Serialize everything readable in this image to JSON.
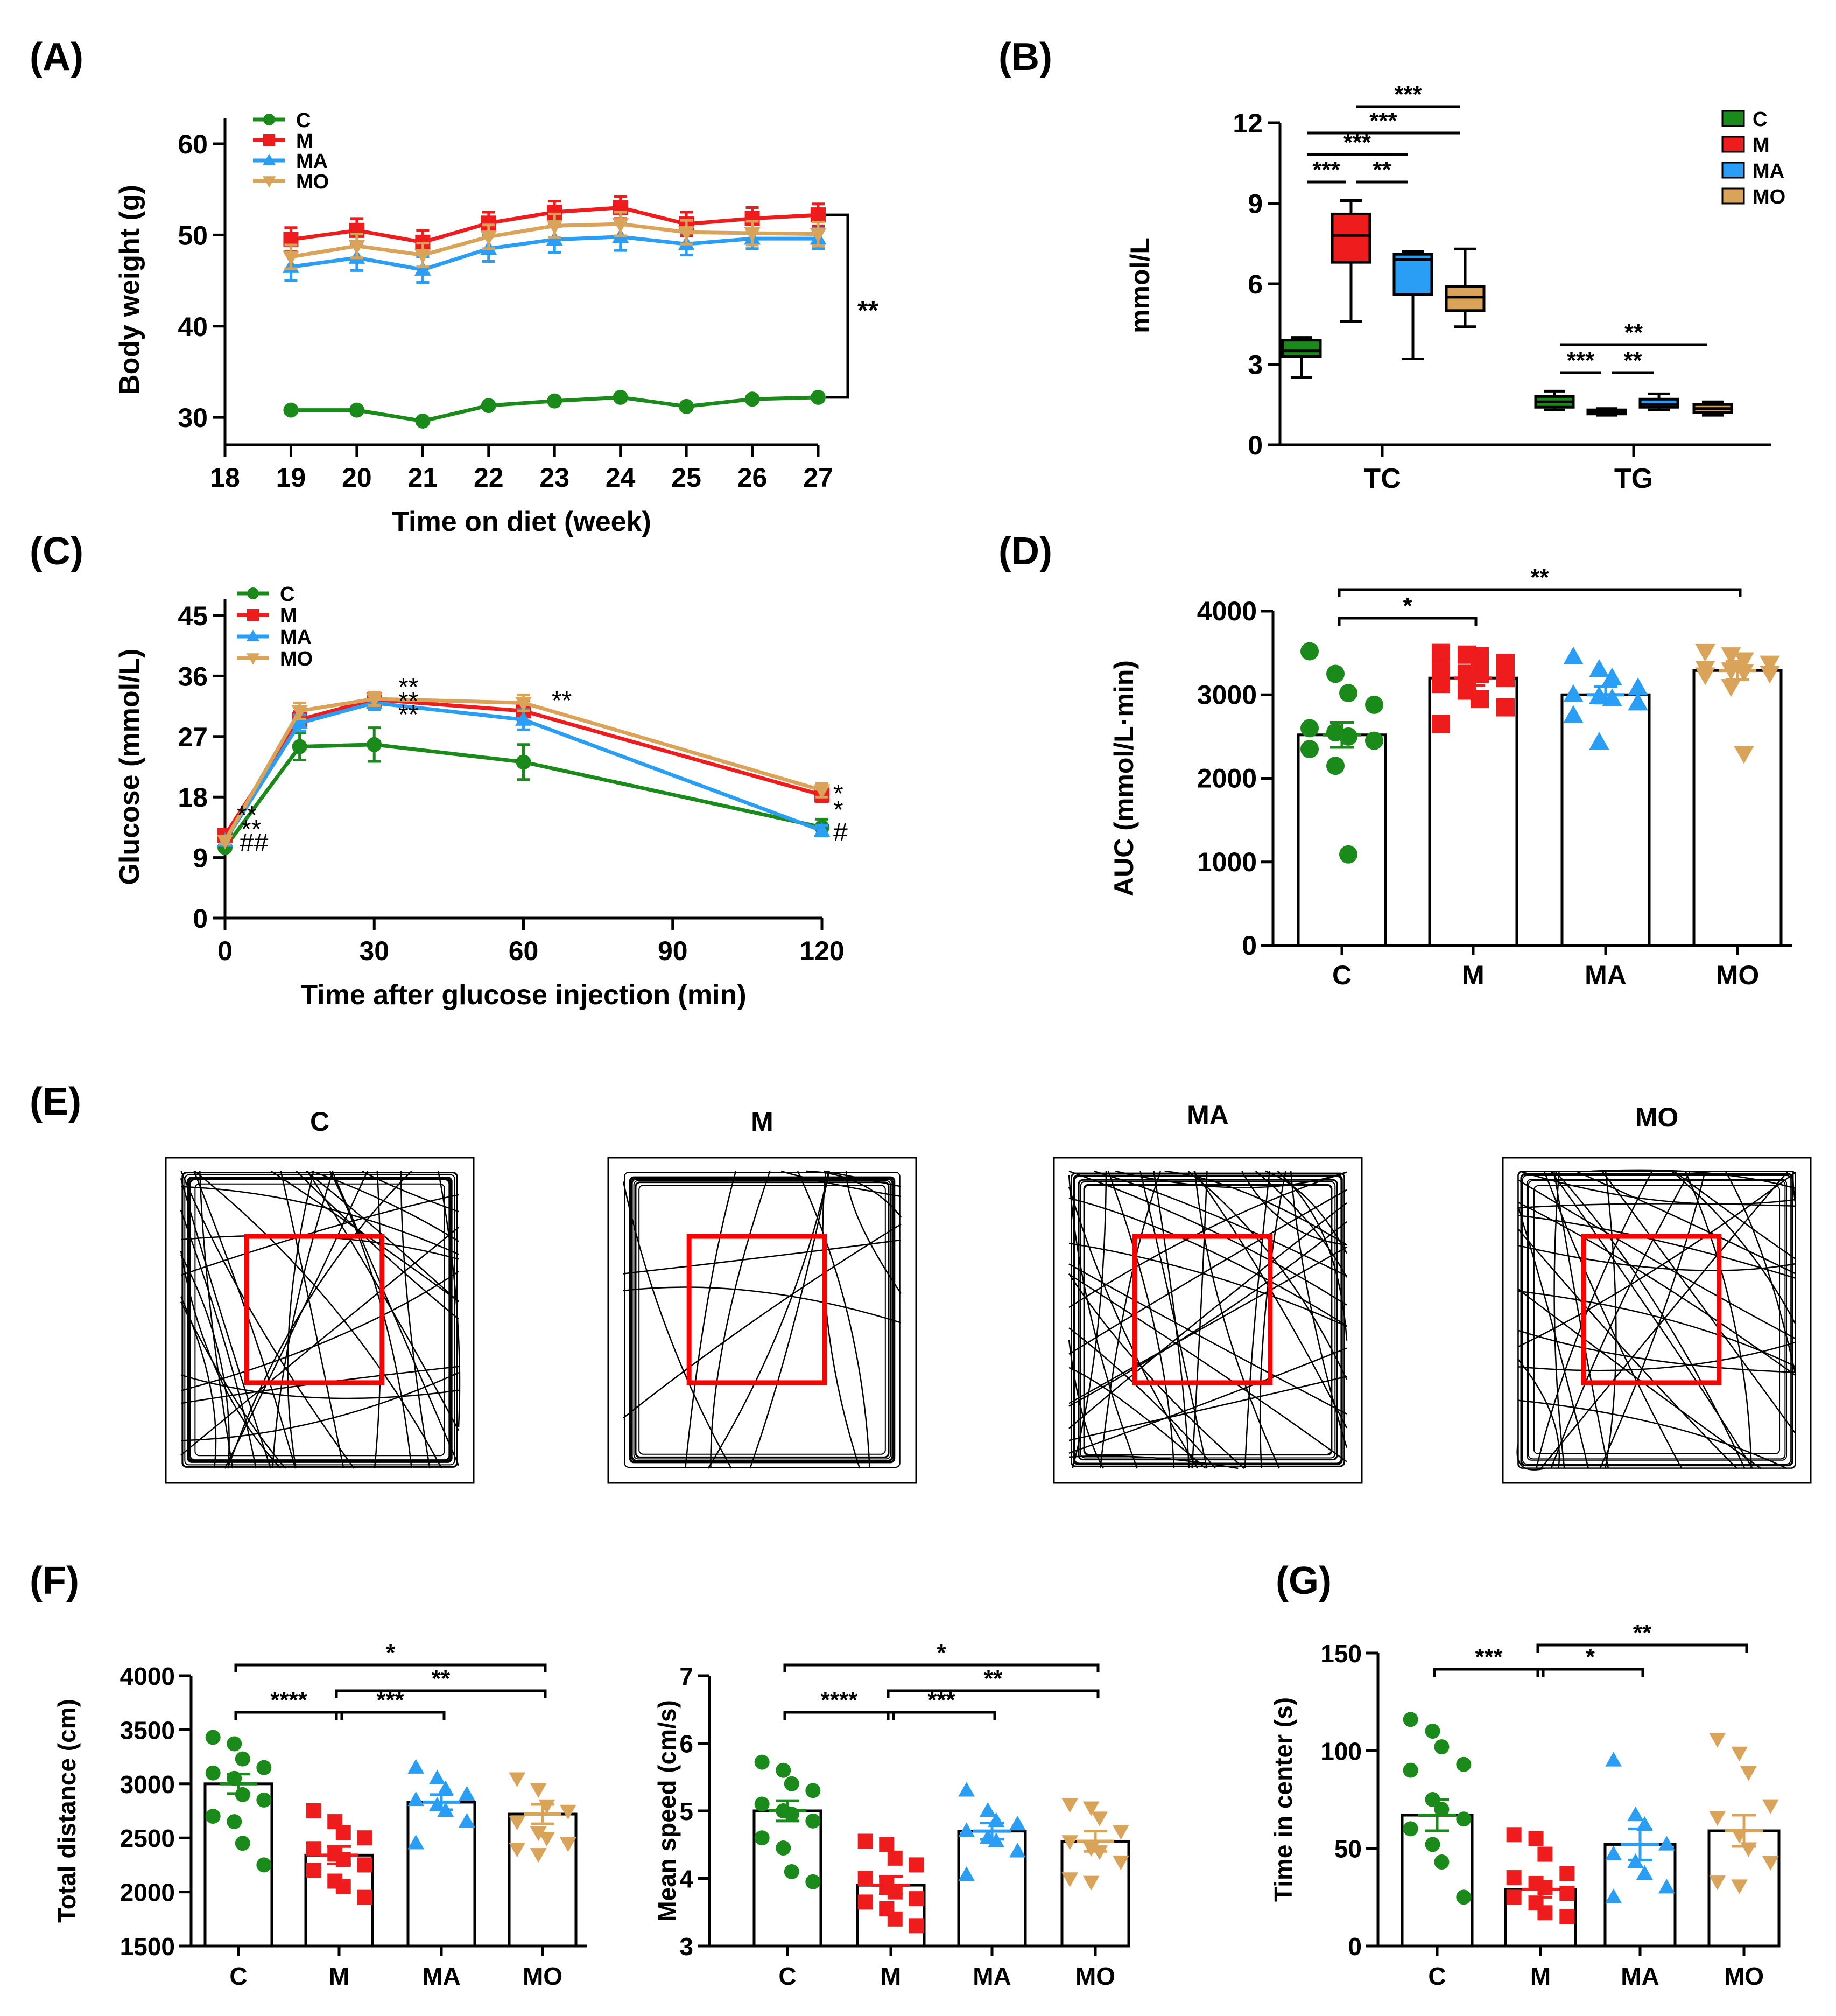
{
  "panel_labels": [
    "(A)",
    "(B)",
    "(C)",
    "(D)",
    "(E)",
    "(F)",
    "(G)"
  ],
  "colors": {
    "C": "#1a8a1a",
    "M": "#ee1c1c",
    "MA": "#2a9df4",
    "MO": "#d9a35a",
    "MO_C": "#9c8a3c"
  },
  "chart_data": [
    {
      "id": "A",
      "type": "line",
      "xlabel": "Time on diet (week)",
      "ylabel": "Body weight (g)",
      "xlim": [
        18,
        27
      ],
      "ylim": [
        27,
        61
      ],
      "xticks": [
        18,
        19,
        20,
        21,
        22,
        23,
        24,
        25,
        26,
        27
      ],
      "yticks": [
        30,
        40,
        50,
        60
      ],
      "x": [
        19,
        20,
        21,
        22,
        23,
        24,
        25,
        26,
        27
      ],
      "series": [
        {
          "name": "C",
          "values": [
            30.8,
            30.8,
            29.6,
            31.3,
            31.8,
            32.2,
            31.2,
            32.0,
            32.2
          ],
          "err": [
            0.3,
            0.3,
            0.3,
            0.3,
            0.3,
            0.3,
            0.3,
            0.3,
            0.3
          ],
          "marker": "circle"
        },
        {
          "name": "M",
          "values": [
            49.5,
            50.5,
            49.2,
            51.3,
            52.5,
            53.0,
            51.2,
            51.8,
            52.2
          ],
          "err": [
            1.3,
            1.3,
            1.3,
            1.2,
            1.2,
            1.2,
            1.3,
            1.2,
            1.2
          ],
          "marker": "square"
        },
        {
          "name": "MA",
          "values": [
            46.5,
            47.5,
            46.2,
            48.5,
            49.5,
            49.8,
            49.0,
            49.6,
            49.6
          ],
          "err": [
            1.5,
            1.4,
            1.4,
            1.4,
            1.4,
            1.5,
            1.2,
            1.1,
            1.1
          ],
          "marker": "triangle-up"
        },
        {
          "name": "MO",
          "values": [
            47.6,
            48.8,
            47.8,
            49.8,
            51.0,
            51.2,
            50.3,
            50.2,
            50.1
          ],
          "err": [
            1.3,
            1.3,
            1.3,
            1.3,
            1.3,
            1.3,
            1.3,
            1.3,
            1.3
          ],
          "marker": "triangle-down"
        }
      ],
      "annotation": "**",
      "legend": "top-left"
    },
    {
      "id": "B",
      "type": "box",
      "ylabel": "mmol/L",
      "ylim": [
        0,
        12
      ],
      "yticks": [
        0,
        3,
        6,
        9,
        12
      ],
      "categories": [
        "TC",
        "TG"
      ],
      "series": [
        {
          "name": "C",
          "boxes": [
            {
              "min": 2.5,
              "q1": 3.3,
              "median": 3.5,
              "q3": 3.9,
              "max": 4.0
            },
            {
              "min": 1.3,
              "q1": 1.4,
              "median": 1.6,
              "q3": 1.8,
              "max": 2.0
            }
          ]
        },
        {
          "name": "M",
          "boxes": [
            {
              "min": 4.6,
              "q1": 6.8,
              "median": 7.8,
              "q3": 8.6,
              "max": 9.1
            },
            {
              "min": 1.1,
              "q1": 1.15,
              "median": 1.2,
              "q3": 1.3,
              "max": 1.35
            }
          ]
        },
        {
          "name": "MA",
          "boxes": [
            {
              "min": 3.2,
              "q1": 5.6,
              "median": 6.9,
              "q3": 7.1,
              "max": 7.2
            },
            {
              "min": 1.3,
              "q1": 1.4,
              "median": 1.5,
              "q3": 1.7,
              "max": 1.9
            }
          ]
        },
        {
          "name": "MO",
          "boxes": [
            {
              "min": 4.4,
              "q1": 5.0,
              "median": 5.5,
              "q3": 5.9,
              "max": 7.3
            },
            {
              "min": 1.1,
              "q1": 1.2,
              "median": 1.35,
              "q3": 1.5,
              "max": 1.6
            }
          ]
        }
      ],
      "significance": [
        {
          "label": "***",
          "from": "TC-M",
          "to": "TC-MO"
        },
        {
          "label": "***",
          "from": "TC-C",
          "to": "TC-MO"
        },
        {
          "label": "***",
          "from": "TC-C",
          "to": "TC-MA"
        },
        {
          "label": "***",
          "from": "TC-C",
          "to": "TC-M"
        },
        {
          "label": "**",
          "from": "TC-M",
          "to": "TC-MA"
        },
        {
          "label": "**",
          "from": "TG-C",
          "to": "TG-MO"
        },
        {
          "label": "***",
          "from": "TG-C",
          "to": "TG-M"
        },
        {
          "label": "**",
          "from": "TG-M",
          "to": "TG-MA"
        }
      ],
      "legend": "top-right"
    },
    {
      "id": "C",
      "type": "line",
      "xlabel": "Time after glucose injection (min)",
      "ylabel": "Glucose (mmol/L)",
      "xlim": [
        0,
        120
      ],
      "ylim": [
        0,
        45
      ],
      "xticks": [
        0,
        30,
        60,
        90,
        120
      ],
      "yticks": [
        0,
        9,
        18,
        27,
        36,
        45
      ],
      "x": [
        0,
        15,
        30,
        60,
        120
      ],
      "series": [
        {
          "name": "C",
          "values": [
            10.5,
            25.5,
            25.8,
            23.2,
            13.5
          ],
          "err": [
            0.5,
            2.0,
            2.5,
            2.6,
            1.2
          ],
          "marker": "circle"
        },
        {
          "name": "M",
          "values": [
            12.3,
            29.5,
            32.5,
            30.8,
            18.3
          ],
          "err": [
            0.5,
            1.2,
            1.0,
            1.5,
            1.0
          ],
          "marker": "square"
        },
        {
          "name": "MA",
          "values": [
            11.5,
            29.0,
            32.0,
            29.5,
            13.0
          ],
          "err": [
            0.5,
            1.2,
            1.0,
            1.5,
            0.8
          ],
          "marker": "triangle-up"
        },
        {
          "name": "MO",
          "values": [
            11.5,
            30.8,
            32.6,
            32.0,
            19.0
          ],
          "err": [
            0.5,
            1.2,
            1.0,
            1.2,
            1.0
          ],
          "marker": "triangle-down"
        }
      ],
      "annotations": [
        "**",
        "**",
        "##",
        "**",
        "**",
        "**",
        "**",
        "*",
        "*",
        "#"
      ],
      "legend": "top-left"
    },
    {
      "id": "D",
      "type": "bar-scatter",
      "ylabel": "AUC (mmol/L·min)",
      "ylim": [
        0,
        4000
      ],
      "yticks": [
        0,
        1000,
        2000,
        3000,
        4000
      ],
      "categories": [
        "C",
        "M",
        "MA",
        "MO"
      ],
      "values": [
        2520,
        3200,
        3000,
        3290
      ],
      "sem": [
        150,
        90,
        100,
        110
      ],
      "points": [
        [
          3520,
          3250,
          3020,
          2880,
          2600,
          2550,
          2500,
          2450,
          2350,
          2150,
          1090
        ],
        [
          3500,
          3480,
          3460,
          3380,
          3280,
          3250,
          3250,
          3200,
          3130,
          3050,
          2950,
          2850,
          2650
        ],
        [
          3450,
          3300,
          3200,
          3080,
          3000,
          2980,
          2950,
          2900,
          2750,
          2430
        ],
        [
          3520,
          3480,
          3420,
          3380,
          3320,
          3300,
          3280,
          3260,
          3240,
          3100,
          2300
        ]
      ],
      "significance": [
        {
          "label": "*",
          "from": "C",
          "to": "M"
        },
        {
          "label": "**",
          "from": "C",
          "to": "MO"
        }
      ]
    },
    {
      "id": "F1",
      "type": "bar-scatter",
      "ylabel": "Total distance (cm)",
      "ylim": [
        1500,
        4000
      ],
      "yticks": [
        1500,
        2000,
        2500,
        3000,
        3500,
        4000
      ],
      "categories": [
        "C",
        "M",
        "MA",
        "MO"
      ],
      "values": [
        3000,
        2340,
        2830,
        2720
      ],
      "sem": [
        90,
        80,
        70,
        90
      ],
      "points": [
        [
          3430,
          3370,
          3230,
          3150,
          3100,
          3050,
          2900,
          2850,
          2700,
          2650,
          2450,
          2250
        ],
        [
          2750,
          2650,
          2550,
          2500,
          2400,
          2350,
          2300,
          2250,
          2200,
          2100,
          2050,
          1950
        ],
        [
          3150,
          3050,
          2950,
          2900,
          2850,
          2800,
          2750,
          2650,
          2450
        ],
        [
          3050,
          2950,
          2800,
          2750,
          2650,
          2550,
          2500,
          2450,
          2400,
          2350
        ]
      ],
      "significance": [
        {
          "label": "*",
          "from": "C",
          "to": "MO"
        },
        {
          "label": "**",
          "from": "M",
          "to": "MO"
        },
        {
          "label": "****",
          "from": "C",
          "to": "M"
        },
        {
          "label": "***",
          "from": "M",
          "to": "MA"
        }
      ]
    },
    {
      "id": "F2",
      "type": "bar-scatter",
      "ylabel": "Mean speed (cm/s)",
      "ylim": [
        3,
        7
      ],
      "yticks": [
        3,
        4,
        5,
        6,
        7
      ],
      "categories": [
        "C",
        "M",
        "MA",
        "MO"
      ],
      "values": [
        5.0,
        3.9,
        4.7,
        4.55
      ],
      "sem": [
        0.15,
        0.13,
        0.12,
        0.15
      ],
      "points": [
        [
          5.72,
          5.6,
          5.4,
          5.3,
          5.1,
          5.0,
          4.95,
          4.85,
          4.6,
          4.45,
          4.1,
          3.95
        ],
        [
          4.55,
          4.5,
          4.3,
          4.2,
          4.0,
          3.9,
          3.8,
          3.7,
          3.65,
          3.55,
          3.4,
          3.3
        ],
        [
          5.3,
          5.0,
          4.85,
          4.8,
          4.7,
          4.6,
          4.55,
          4.4,
          4.05
        ],
        [
          5.1,
          5.05,
          4.9,
          4.7,
          4.55,
          4.45,
          4.4,
          4.25,
          4.0,
          3.95
        ]
      ],
      "significance": [
        {
          "label": "*",
          "from": "C",
          "to": "MO"
        },
        {
          "label": "**",
          "from": "M",
          "to": "MO"
        },
        {
          "label": "****",
          "from": "C",
          "to": "M"
        },
        {
          "label": "***",
          "from": "M",
          "to": "MA"
        }
      ]
    },
    {
      "id": "G",
      "type": "bar-scatter",
      "ylabel": "Time in center (s)",
      "ylim": [
        0,
        150
      ],
      "yticks": [
        0,
        50,
        100,
        150
      ],
      "categories": [
        "C",
        "M",
        "MA",
        "MO"
      ],
      "values": [
        67,
        29,
        52,
        59
      ],
      "sem": [
        8,
        4,
        8,
        8
      ],
      "points": [
        [
          116,
          110,
          102,
          93,
          90,
          75,
          70,
          65,
          60,
          52,
          43,
          25
        ],
        [
          57,
          55,
          47,
          37,
          35,
          32,
          30,
          27,
          25,
          22,
          17,
          15
        ],
        [
          95,
          67,
          62,
          52,
          47,
          43,
          37,
          30,
          25
        ],
        [
          106,
          99,
          89,
          72,
          66,
          57,
          50,
          43,
          33,
          31
        ]
      ],
      "significance": [
        {
          "label": "***",
          "from": "C",
          "to": "M"
        },
        {
          "label": "*",
          "from": "M",
          "to": "MA"
        },
        {
          "label": "**",
          "from": "M",
          "to": "MO"
        }
      ]
    }
  ],
  "open_field": {
    "panels": [
      {
        "label": "C"
      },
      {
        "label": "M"
      },
      {
        "label": "MA"
      },
      {
        "label": "MO"
      }
    ],
    "center_zone_color": "#ff0000",
    "track_color": "#000000"
  }
}
